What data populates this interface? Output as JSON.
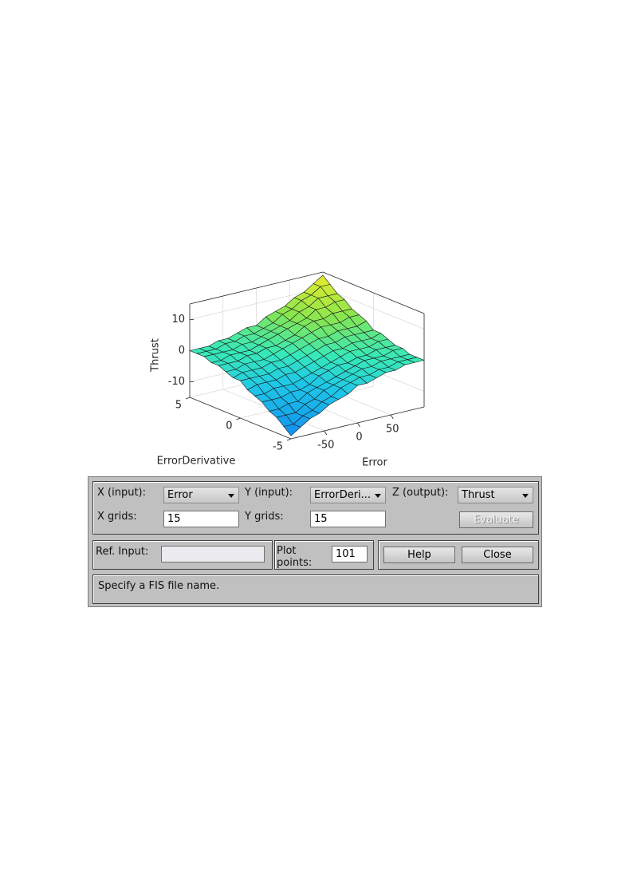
{
  "chart_data": {
    "type": "surface",
    "xlabel": "Error",
    "ylabel": "ErrorDerivative",
    "zlabel": "Thrust",
    "x": [
      -100,
      -85.71,
      -71.43,
      -57.14,
      -42.86,
      -28.57,
      -14.29,
      0,
      14.29,
      28.57,
      42.86,
      57.14,
      71.43,
      85.71,
      100
    ],
    "y": [
      -5,
      -4.29,
      -3.57,
      -2.86,
      -2.14,
      -1.43,
      -0.71,
      0,
      0.71,
      1.43,
      2.14,
      2.86,
      3.57,
      4.29,
      5
    ],
    "z": [
      [
        -14,
        -12,
        -10,
        -9,
        -7,
        -6,
        -5,
        -3,
        -3,
        -2,
        -1,
        -1,
        0,
        0,
        0
      ],
      [
        -12,
        -12,
        -10,
        -9,
        -7,
        -6,
        -4,
        -3,
        -2,
        -2,
        -1,
        -1,
        0,
        0,
        0
      ],
      [
        -10,
        -10,
        -10,
        -8,
        -7,
        -5,
        -4,
        -3,
        -2,
        -1,
        -1,
        0,
        0,
        0,
        0
      ],
      [
        -9,
        -9,
        -8,
        -8,
        -6,
        -5,
        -4,
        -3,
        -2,
        -1,
        0,
        0,
        0,
        1,
        1
      ],
      [
        -7,
        -7,
        -7,
        -6,
        -6,
        -5,
        -3,
        -2,
        -1,
        -1,
        0,
        0,
        1,
        1,
        1
      ],
      [
        -6,
        -6,
        -5,
        -5,
        -5,
        -4,
        -3,
        -2,
        -1,
        0,
        1,
        1,
        1,
        2,
        2
      ],
      [
        -5,
        -4,
        -4,
        -4,
        -3,
        -3,
        -2,
        -1,
        0,
        1,
        1,
        2,
        2,
        2,
        3
      ],
      [
        -3,
        -3,
        -3,
        -3,
        -2,
        -2,
        -1,
        0,
        1,
        2,
        2,
        3,
        3,
        3,
        3
      ],
      [
        -3,
        -2,
        -2,
        -2,
        -1,
        -1,
        0,
        1,
        2,
        3,
        3,
        4,
        4,
        4,
        5
      ],
      [
        -2,
        -2,
        -1,
        -1,
        -1,
        0,
        1,
        2,
        3,
        4,
        5,
        5,
        5,
        6,
        6
      ],
      [
        -1,
        -1,
        -1,
        0,
        0,
        1,
        1,
        2,
        3,
        5,
        6,
        6,
        7,
        7,
        7
      ],
      [
        -1,
        -1,
        0,
        0,
        0,
        1,
        2,
        3,
        4,
        5,
        6,
        8,
        8,
        9,
        9
      ],
      [
        0,
        0,
        0,
        0,
        1,
        1,
        2,
        3,
        4,
        5,
        7,
        8,
        10,
        10,
        10
      ],
      [
        0,
        0,
        0,
        1,
        1,
        2,
        2,
        3,
        4,
        6,
        7,
        9,
        10,
        12,
        12
      ],
      [
        0,
        0,
        0,
        1,
        1,
        2,
        3,
        3,
        5,
        6,
        7,
        9,
        10,
        12,
        14
      ]
    ],
    "xlim": [
      -100,
      100
    ],
    "xticks": [
      -50,
      0,
      50
    ],
    "ylim": [
      -5,
      5
    ],
    "yticks": [
      -5,
      0,
      5
    ],
    "zlim": [
      -15,
      15
    ],
    "zticks": [
      -10,
      0,
      10
    ],
    "grid": true
  },
  "controls": {
    "x_input": {
      "label": "X (input):",
      "value": "Error"
    },
    "y_input": {
      "label": "Y (input):",
      "value": "ErrorDeri..."
    },
    "z_output": {
      "label": "Z (output):",
      "value": "Thrust"
    },
    "x_grids": {
      "label": "X grids:",
      "value": "15"
    },
    "y_grids": {
      "label": "Y grids:",
      "value": "15"
    },
    "evaluate": "Evaluate",
    "ref_input": {
      "label": "Ref. Input:"
    },
    "plot_points": {
      "label": "Plot points:",
      "value": "101"
    },
    "help": "Help",
    "close": "Close",
    "status": "Specify a FIS file name."
  }
}
